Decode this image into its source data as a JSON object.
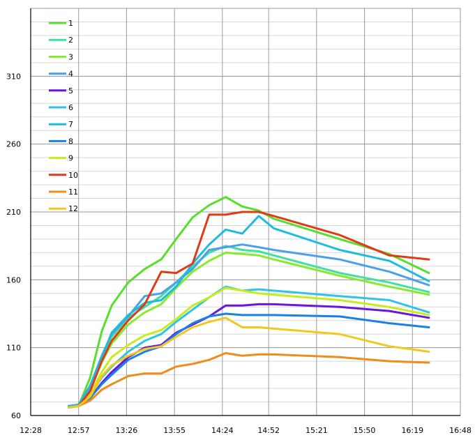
{
  "chart_data": {
    "type": "line",
    "title": "",
    "xlabel": "",
    "ylabel": "",
    "grid": true,
    "legend_position": "top-left",
    "x_ticks": [
      "12:28",
      "12:57",
      "13:26",
      "13:55",
      "14:24",
      "14:52",
      "15:21",
      "15:50",
      "16:19",
      "16:48"
    ],
    "y_ticks": [
      60,
      110,
      160,
      210,
      260,
      310
    ],
    "xlim": [
      "12:28",
      "16:48"
    ],
    "ylim": [
      60,
      360
    ],
    "series": [
      {
        "name": "1",
        "color": "#55e02c",
        "x": [
          "12:51",
          "12:57",
          "13:04",
          "13:11",
          "13:17",
          "13:27",
          "13:37",
          "13:47",
          "13:56",
          "14:06",
          "14:16",
          "14:26",
          "14:36",
          "14:46",
          "14:55",
          "15:35",
          "16:05",
          "16:29"
        ],
        "y": [
          66,
          67,
          88,
          122,
          141,
          158,
          168,
          175,
          190,
          206,
          215,
          221,
          214,
          211,
          205,
          190,
          179,
          165
        ]
      },
      {
        "name": "2",
        "color": "#3fe29c",
        "x": [
          "12:51",
          "12:57",
          "13:04",
          "13:11",
          "13:17",
          "13:27",
          "13:37",
          "13:47",
          "13:56",
          "14:06",
          "14:16",
          "14:26",
          "14:36",
          "14:46",
          "14:55",
          "15:35",
          "16:05",
          "16:29"
        ],
        "y": [
          66,
          67,
          82,
          103,
          118,
          132,
          140,
          148,
          158,
          170,
          180,
          185,
          182,
          181,
          178,
          165,
          158,
          151
        ]
      },
      {
        "name": "3",
        "color": "#88ea30",
        "x": [
          "12:51",
          "12:57",
          "13:04",
          "13:11",
          "13:17",
          "13:27",
          "13:37",
          "13:47",
          "13:56",
          "14:06",
          "14:16",
          "14:26",
          "14:36",
          "14:46",
          "14:55",
          "15:35",
          "16:05",
          "16:29"
        ],
        "y": [
          66,
          67,
          80,
          99,
          113,
          127,
          136,
          142,
          154,
          166,
          174,
          180,
          179,
          178,
          175,
          163,
          155,
          149
        ]
      },
      {
        "name": "4",
        "color": "#4ba0ec",
        "x": [
          "12:51",
          "12:57",
          "13:04",
          "13:11",
          "13:17",
          "13:27",
          "13:37",
          "13:47",
          "13:56",
          "14:06",
          "14:16",
          "14:26",
          "14:36",
          "14:46",
          "14:55",
          "15:35",
          "16:05",
          "16:29"
        ],
        "y": [
          67,
          68,
          82,
          104,
          120,
          133,
          148,
          150,
          158,
          168,
          182,
          184,
          186,
          184,
          182,
          175,
          166,
          156
        ]
      },
      {
        "name": "5",
        "color": "#6a16dc",
        "x": [
          "12:51",
          "12:57",
          "13:04",
          "13:11",
          "13:17",
          "13:27",
          "13:37",
          "13:47",
          "13:56",
          "14:06",
          "14:16",
          "14:26",
          "14:36",
          "14:46",
          "14:55",
          "15:35",
          "16:05",
          "16:29"
        ],
        "y": [
          66,
          67,
          73,
          84,
          92,
          103,
          110,
          112,
          121,
          127,
          133,
          141,
          141,
          142,
          142,
          140,
          137,
          132
        ]
      },
      {
        "name": "6",
        "color": "#2ec4e8",
        "x": [
          "12:51",
          "12:57",
          "13:04",
          "13:11",
          "13:17",
          "13:27",
          "13:37",
          "13:47",
          "13:56",
          "14:06",
          "14:16",
          "14:26",
          "14:36",
          "14:46",
          "14:55",
          "15:35",
          "16:05",
          "16:29"
        ],
        "y": [
          66,
          67,
          75,
          88,
          96,
          107,
          115,
          120,
          129,
          138,
          147,
          155,
          152,
          153,
          152,
          148,
          145,
          136
        ]
      },
      {
        "name": "7",
        "color": "#1dbbe0",
        "x": [
          "12:51",
          "12:57",
          "13:04",
          "13:11",
          "13:17",
          "13:27",
          "13:37",
          "13:47",
          "13:56",
          "14:06",
          "14:16",
          "14:26",
          "14:36",
          "14:46",
          "14:55",
          "15:35",
          "16:05",
          "16:29"
        ],
        "y": [
          67,
          68,
          80,
          103,
          121,
          134,
          143,
          145,
          155,
          172,
          186,
          197,
          194,
          207,
          198,
          182,
          174,
          159
        ]
      },
      {
        "name": "8",
        "color": "#1b7fe8",
        "x": [
          "12:51",
          "12:57",
          "13:04",
          "13:11",
          "13:17",
          "13:27",
          "13:37",
          "13:47",
          "13:56",
          "14:06",
          "14:16",
          "14:26",
          "14:36",
          "14:46",
          "14:55",
          "15:35",
          "16:05",
          "16:29"
        ],
        "y": [
          66,
          67,
          73,
          83,
          90,
          101,
          107,
          111,
          120,
          128,
          133,
          135,
          134,
          134,
          134,
          133,
          128,
          125
        ]
      },
      {
        "name": "9",
        "color": "#c6ec1c",
        "x": [
          "12:51",
          "12:57",
          "13:04",
          "13:11",
          "13:17",
          "13:27",
          "13:37",
          "13:47",
          "13:56",
          "14:06",
          "14:16",
          "14:26",
          "14:36",
          "14:46",
          "14:55",
          "15:35",
          "16:05",
          "16:29"
        ],
        "y": [
          66,
          67,
          76,
          92,
          103,
          112,
          119,
          123,
          131,
          141,
          147,
          154,
          152,
          150,
          149,
          145,
          140,
          134
        ]
      },
      {
        "name": "10",
        "color": "#e03a16",
        "x": [
          "12:51",
          "12:57",
          "13:04",
          "13:11",
          "13:17",
          "13:27",
          "13:37",
          "13:47",
          "13:56",
          "14:06",
          "14:16",
          "14:26",
          "14:36",
          "14:46",
          "14:55",
          "15:35",
          "16:05",
          "16:29"
        ],
        "y": [
          66,
          67,
          78,
          100,
          115,
          130,
          142,
          166,
          165,
          172,
          208,
          208,
          210,
          210,
          207,
          193,
          178,
          175
        ]
      },
      {
        "name": "11",
        "color": "#ef8c1a",
        "x": [
          "12:51",
          "12:57",
          "13:04",
          "13:11",
          "13:17",
          "13:27",
          "13:37",
          "13:47",
          "13:56",
          "14:06",
          "14:16",
          "14:26",
          "14:36",
          "14:46",
          "14:55",
          "15:35",
          "16:05",
          "16:29"
        ],
        "y": [
          66,
          67,
          71,
          79,
          83,
          89,
          91,
          91,
          96,
          98,
          101,
          106,
          104,
          105,
          105,
          103,
          100,
          99
        ]
      },
      {
        "name": "12",
        "color": "#f0c81e",
        "x": [
          "12:51",
          "12:57",
          "13:04",
          "13:11",
          "13:17",
          "13:27",
          "13:37",
          "13:47",
          "13:56",
          "14:06",
          "14:16",
          "14:26",
          "14:36",
          "14:46",
          "14:55",
          "15:35",
          "16:05",
          "16:29"
        ],
        "y": [
          66,
          67,
          74,
          89,
          97,
          104,
          109,
          111,
          118,
          125,
          129,
          132,
          125,
          125,
          124,
          120,
          111,
          107
        ]
      }
    ]
  }
}
